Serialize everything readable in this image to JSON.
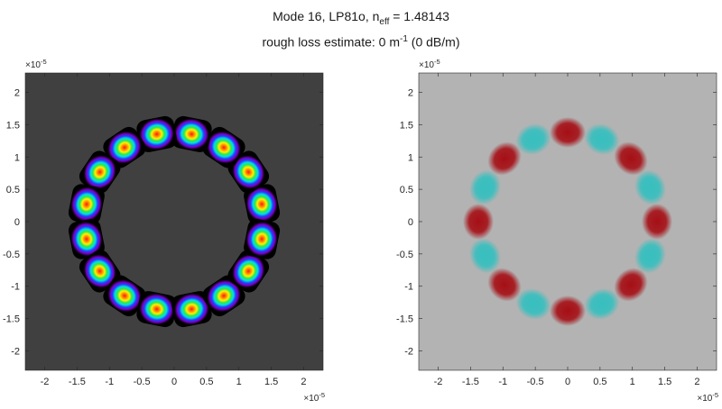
{
  "title": {
    "line1_prefix": "Mode 16, LP81o, n",
    "line1_sub": "eff",
    "line1_suffix": " = 1.48143",
    "line2_prefix": "rough loss estimate: 0 m",
    "line2_sup": "-1",
    "line2_suffix": " (0 dB/m)"
  },
  "colors": {
    "left_background": "#404040",
    "right_background": "#b3b3b3",
    "lobe_positive": "#a50f15",
    "lobe_negative": "#36bfbf",
    "axis": "#262626"
  },
  "chart_data": [
    {
      "type": "heatmap",
      "name": "intensity",
      "colormap": "gnuplot-like (black-purple-blue-cyan-green-yellow-red)",
      "xlim": [
        -2.3e-05,
        2.3e-05
      ],
      "ylim": [
        -2.3e-05,
        2.3e-05
      ],
      "x_ticks": [
        -2,
        -1.5,
        -1,
        -0.5,
        0,
        0.5,
        1,
        1.5,
        2
      ],
      "y_ticks": [
        2,
        1.5,
        1,
        0.5,
        0,
        -0.5,
        -1,
        -1.5,
        -2
      ],
      "x_exponent": "-5",
      "y_exponent": "-5",
      "exponent_base": "×10",
      "pattern": {
        "lobes": 16,
        "ring_radius": 1.38e-05,
        "lobe_angles_deg": [
          11.25,
          33.75,
          56.25,
          78.75,
          101.25,
          123.75,
          146.25,
          168.75,
          191.25,
          213.75,
          236.25,
          258.75,
          281.25,
          303.75,
          326.25,
          348.75
        ]
      }
    },
    {
      "type": "heatmap",
      "name": "field",
      "colormap": "diverging red-gray-cyan",
      "xlim": [
        -2.3e-05,
        2.3e-05
      ],
      "ylim": [
        -2.3e-05,
        2.3e-05
      ],
      "x_ticks": [
        -2,
        -1.5,
        -1,
        -0.5,
        0,
        0.5,
        1,
        1.5,
        2
      ],
      "y_ticks": [
        2,
        1.5,
        1,
        0.5,
        0,
        -0.5,
        -1,
        -1.5,
        -2
      ],
      "x_exponent": "-5",
      "y_exponent": "-5",
      "exponent_base": "×10",
      "pattern": {
        "lobes": 16,
        "ring_radius": 1.38e-05,
        "lobe_angles_deg": [
          0,
          22.5,
          45,
          67.5,
          90,
          112.5,
          135,
          157.5,
          180,
          202.5,
          225,
          247.5,
          270,
          292.5,
          315,
          337.5
        ],
        "lobe_signs": [
          1,
          -1,
          1,
          -1,
          1,
          -1,
          1,
          -1,
          1,
          -1,
          1,
          -1,
          1,
          -1,
          1,
          -1
        ]
      }
    }
  ]
}
